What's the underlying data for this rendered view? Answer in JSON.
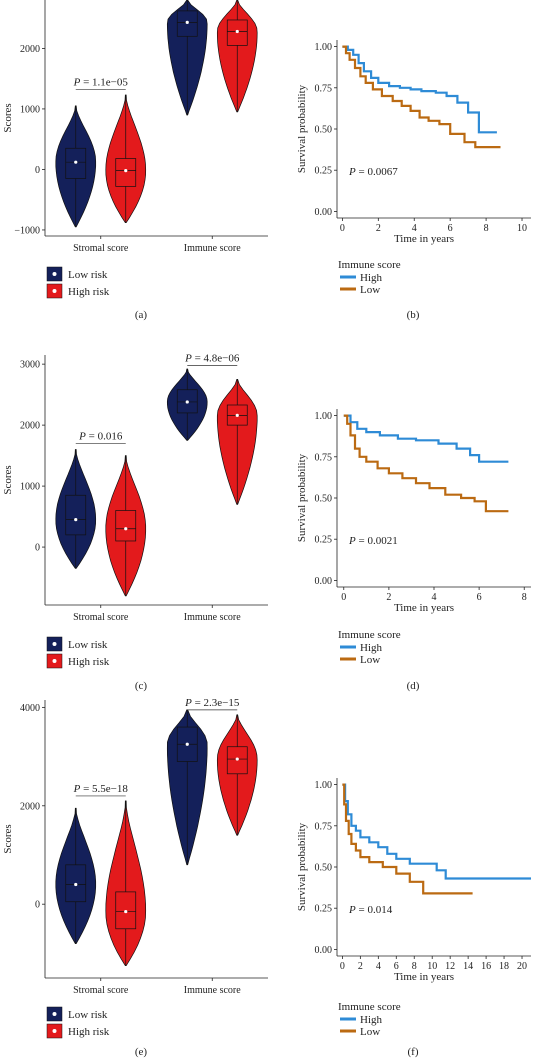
{
  "legend_violin": {
    "low_label": "Low risk",
    "high_label": "High risk",
    "low_color": "#14205a",
    "high_color": "#e31a1c"
  },
  "legend_km": {
    "title": "Immune score",
    "high_label": "High",
    "low_label": "Low",
    "high_color": "#2e8bd6",
    "low_color": "#bb6a12"
  },
  "chart_data": [
    {
      "type": "violin",
      "panel": "a",
      "caption": "(a)",
      "ylabel": "Scores",
      "categories": [
        "Stromal score",
        "Immune score"
      ],
      "ylim": [
        -1100,
        2800
      ],
      "yticks": [
        -1000,
        0,
        1000,
        2000
      ],
      "ytick_labels": [
        "−1000",
        "0",
        "1000",
        "2000"
      ],
      "series": [
        {
          "name": "Low risk",
          "stats": [
            {
              "min": -950,
              "q1": -150,
              "median": 120,
              "q3": 350,
              "max": 1050
            },
            {
              "min": 900,
              "q1": 2200,
              "median": 2430,
              "q3": 2620,
              "max": 2800
            }
          ]
        },
        {
          "name": "High risk",
          "stats": [
            {
              "min": -880,
              "q1": -280,
              "median": -20,
              "q3": 180,
              "max": 1230
            },
            {
              "min": 950,
              "q1": 2050,
              "median": 2280,
              "q3": 2470,
              "max": 2800
            }
          ]
        }
      ],
      "pvalues": [
        {
          "category": 0,
          "y": 1320,
          "label": "P = 1.1e−05"
        }
      ]
    },
    {
      "type": "line",
      "panel": "b",
      "caption": "(b)",
      "xlabel": "Time in years",
      "ylabel": "Survival probability",
      "xlim": [
        -0.3,
        10.5
      ],
      "ylim": [
        -0.04,
        1.04
      ],
      "xticks": [
        0,
        2,
        4,
        6,
        8,
        10
      ],
      "yticks": [
        0,
        0.25,
        0.5,
        0.75,
        1.0
      ],
      "ytick_labels": [
        "0.00",
        "0.25",
        "0.50",
        "0.75",
        "1.00"
      ],
      "pvalue": "P = 0.0067",
      "series": [
        {
          "name": "High",
          "x": [
            0,
            0.3,
            0.6,
            0.9,
            1.2,
            1.6,
            2.0,
            2.6,
            3.2,
            3.8,
            4.4,
            5.2,
            5.8,
            6.4,
            7.0,
            7.6,
            8.6
          ],
          "y": [
            1.0,
            0.98,
            0.95,
            0.9,
            0.85,
            0.81,
            0.78,
            0.76,
            0.75,
            0.74,
            0.73,
            0.72,
            0.7,
            0.66,
            0.6,
            0.48,
            0.48
          ]
        },
        {
          "name": "Low",
          "x": [
            0,
            0.2,
            0.4,
            0.7,
            1.0,
            1.3,
            1.7,
            2.2,
            2.8,
            3.3,
            3.8,
            4.3,
            4.8,
            5.4,
            6.0,
            6.8,
            7.4,
            8.8
          ],
          "y": [
            1.0,
            0.96,
            0.92,
            0.87,
            0.82,
            0.78,
            0.74,
            0.7,
            0.67,
            0.64,
            0.61,
            0.57,
            0.55,
            0.53,
            0.47,
            0.42,
            0.39,
            0.39
          ]
        }
      ]
    },
    {
      "type": "violin",
      "panel": "c",
      "caption": "(c)",
      "ylabel": "Scores",
      "categories": [
        "Stromal score",
        "Immune score"
      ],
      "ylim": [
        -950,
        3150
      ],
      "yticks": [
        0,
        1000,
        2000,
        3000
      ],
      "ytick_labels": [
        "0",
        "1000",
        "2000",
        "3000"
      ],
      "series": [
        {
          "name": "Low risk",
          "stats": [
            {
              "min": -350,
              "q1": 200,
              "median": 450,
              "q3": 850,
              "max": 1600
            },
            {
              "min": 1750,
              "q1": 2200,
              "median": 2380,
              "q3": 2580,
              "max": 2920
            }
          ]
        },
        {
          "name": "High risk",
          "stats": [
            {
              "min": -800,
              "q1": 100,
              "median": 300,
              "q3": 600,
              "max": 1500
            },
            {
              "min": 700,
              "q1": 2000,
              "median": 2160,
              "q3": 2330,
              "max": 2750
            }
          ]
        }
      ],
      "pvalues": [
        {
          "category": 0,
          "y": 1700,
          "label": "P = 0.016"
        },
        {
          "category": 1,
          "y": 2980,
          "label": "P = 4.8e−06"
        }
      ]
    },
    {
      "type": "line",
      "panel": "d",
      "caption": "(d)",
      "xlabel": "Time in years",
      "ylabel": "Survival probability",
      "xlim": [
        -0.3,
        8.3
      ],
      "ylim": [
        -0.04,
        1.04
      ],
      "xticks": [
        0,
        2,
        4,
        6,
        8
      ],
      "yticks": [
        0,
        0.25,
        0.5,
        0.75,
        1.0
      ],
      "ytick_labels": [
        "0.00",
        "0.25",
        "0.50",
        "0.75",
        "1.00"
      ],
      "pvalue": "P = 0.0021",
      "series": [
        {
          "name": "High",
          "x": [
            0,
            0.3,
            0.6,
            1.0,
            1.6,
            2.4,
            3.2,
            4.2,
            5.0,
            5.6,
            6.0,
            7.3
          ],
          "y": [
            1.0,
            0.96,
            0.92,
            0.9,
            0.88,
            0.86,
            0.85,
            0.83,
            0.8,
            0.76,
            0.72,
            0.72
          ]
        },
        {
          "name": "Low",
          "x": [
            0,
            0.15,
            0.3,
            0.5,
            0.7,
            1.0,
            1.5,
            2.0,
            2.6,
            3.2,
            3.8,
            4.5,
            5.2,
            5.8,
            6.3,
            7.3
          ],
          "y": [
            1.0,
            0.95,
            0.88,
            0.8,
            0.75,
            0.72,
            0.68,
            0.65,
            0.62,
            0.59,
            0.56,
            0.52,
            0.5,
            0.48,
            0.42,
            0.42
          ]
        }
      ]
    },
    {
      "type": "violin",
      "panel": "e",
      "caption": "(e)",
      "ylabel": "Scores",
      "categories": [
        "Stromal score",
        "Immune score"
      ],
      "ylim": [
        -1500,
        4150
      ],
      "yticks": [
        0,
        2000,
        4000
      ],
      "ytick_labels": [
        "0",
        "2000",
        "4000"
      ],
      "series": [
        {
          "name": "Low risk",
          "stats": [
            {
              "min": -800,
              "q1": 50,
              "median": 400,
              "q3": 800,
              "max": 1950
            },
            {
              "min": 800,
              "q1": 2900,
              "median": 3250,
              "q3": 3600,
              "max": 3950
            }
          ]
        },
        {
          "name": "High risk",
          "stats": [
            {
              "min": -1250,
              "q1": -500,
              "median": -150,
              "q3": 250,
              "max": 2100
            },
            {
              "min": 1400,
              "q1": 2650,
              "median": 2950,
              "q3": 3200,
              "max": 3850
            }
          ]
        }
      ],
      "pvalues": [
        {
          "category": 0,
          "y": 2200,
          "label": "P = 5.5e−18"
        },
        {
          "category": 1,
          "y": 3950,
          "label": "P = 2.3e−15"
        }
      ]
    },
    {
      "type": "line",
      "panel": "f",
      "caption": "(f)",
      "xlabel": "Time in years",
      "ylabel": "Survival probability",
      "xlim": [
        -0.6,
        21
      ],
      "ylim": [
        -0.04,
        1.04
      ],
      "xticks": [
        0,
        2,
        4,
        6,
        8,
        10,
        12,
        14,
        16,
        18,
        20
      ],
      "yticks": [
        0,
        0.25,
        0.5,
        0.75,
        1.0
      ],
      "ytick_labels": [
        "0.00",
        "0.25",
        "0.50",
        "0.75",
        "1.00"
      ],
      "pvalue": "P = 0.014",
      "series": [
        {
          "name": "High",
          "x": [
            0,
            0.3,
            0.6,
            1.0,
            1.5,
            2.0,
            3.0,
            4.0,
            5.0,
            6.0,
            7.5,
            9.0,
            10.5,
            11.5,
            21
          ],
          "y": [
            1.0,
            0.9,
            0.82,
            0.75,
            0.72,
            0.68,
            0.65,
            0.62,
            0.58,
            0.55,
            0.52,
            0.52,
            0.48,
            0.43,
            0.43
          ]
        },
        {
          "name": "Low",
          "x": [
            0,
            0.2,
            0.4,
            0.7,
            1.0,
            1.5,
            2.0,
            3.0,
            4.5,
            6.0,
            7.5,
            9.0,
            14.5
          ],
          "y": [
            1.0,
            0.88,
            0.78,
            0.7,
            0.64,
            0.6,
            0.56,
            0.53,
            0.5,
            0.46,
            0.41,
            0.34,
            0.34
          ]
        }
      ]
    }
  ]
}
